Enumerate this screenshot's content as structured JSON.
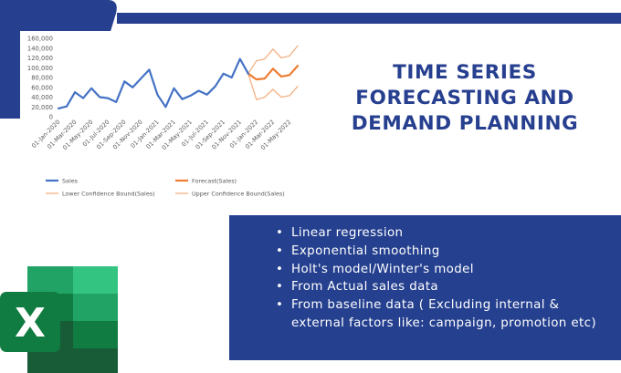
{
  "title_lines": [
    "TIME SERIES",
    "FORECASTING AND",
    "DEMAND PLANNING"
  ],
  "bullets": [
    "Linear regression",
    "Exponential smoothing",
    "Holt's model/Winter's model",
    "From Actual sales data",
    "From baseline data ( Excluding internal & external factors like: campaign, promotion etc)"
  ],
  "logo": {
    "icon": "excel-icon",
    "letter": "X"
  },
  "colors": {
    "brand_blue": "#263f8f",
    "sales": "#4472c4",
    "forecast": "#ed7d31",
    "bound": "#f4b183",
    "excel_dark": "#185c37",
    "excel_mid": "#21a366",
    "excel_light": "#33c481",
    "excel_badge": "#107c41"
  },
  "chart_data": {
    "type": "line",
    "title": "",
    "xlabel": "",
    "ylabel": "",
    "ylim": [
      0,
      160000
    ],
    "y_ticks": [
      "0",
      "20,000",
      "40,000",
      "60,000",
      "80,000",
      "100,000",
      "120,000",
      "140,000",
      "160,000"
    ],
    "x_tick_labels": [
      "01-Jan-2020",
      "01-Mar-2020",
      "01-May-2020",
      "01-Jul-2020",
      "01-Sep-2020",
      "01-Nov-2020",
      "01-Jan-2021",
      "01-Mar-2021",
      "01-May-2021",
      "01-Jul-2021",
      "01-Sep-2021",
      "01-Nov-2021",
      "01-Jan-2022",
      "01-Mar-2022",
      "01-May-2022"
    ],
    "x": [
      "2020-01",
      "2020-02",
      "2020-03",
      "2020-04",
      "2020-05",
      "2020-06",
      "2020-07",
      "2020-08",
      "2020-09",
      "2020-10",
      "2020-11",
      "2020-12",
      "2021-01",
      "2021-02",
      "2021-03",
      "2021-04",
      "2021-05",
      "2021-06",
      "2021-07",
      "2021-08",
      "2021-09",
      "2021-10",
      "2021-11",
      "2021-12",
      "2022-01",
      "2022-02",
      "2022-03",
      "2022-04",
      "2022-05",
      "2022-06"
    ],
    "series": [
      {
        "name": "Sales",
        "color": "#4472c4",
        "values": [
          17000,
          21000,
          50000,
          38000,
          58000,
          40000,
          38000,
          30000,
          72000,
          60000,
          78000,
          96000,
          45000,
          20000,
          58000,
          36000,
          43000,
          53000,
          45000,
          62000,
          88000,
          80000,
          118000,
          88000,
          null,
          null,
          null,
          null,
          null,
          null
        ]
      },
      {
        "name": "Forecast(Sales)",
        "color": "#ed7d31",
        "values": [
          null,
          null,
          null,
          null,
          null,
          null,
          null,
          null,
          null,
          null,
          null,
          null,
          null,
          null,
          null,
          null,
          null,
          null,
          null,
          null,
          null,
          null,
          null,
          88000,
          76000,
          78000,
          98000,
          82000,
          85000,
          104000
        ]
      },
      {
        "name": "Lower Confidence Bound(Sales)",
        "color": "#f4b183",
        "values": [
          null,
          null,
          null,
          null,
          null,
          null,
          null,
          null,
          null,
          null,
          null,
          null,
          null,
          null,
          null,
          null,
          null,
          null,
          null,
          null,
          null,
          null,
          null,
          88000,
          35000,
          40000,
          56000,
          40000,
          43000,
          62000
        ]
      },
      {
        "name": "Upper Confidence Bound(Sales)",
        "color": "#f4b183",
        "values": [
          null,
          null,
          null,
          null,
          null,
          null,
          null,
          null,
          null,
          null,
          null,
          null,
          null,
          null,
          null,
          null,
          null,
          null,
          null,
          null,
          null,
          null,
          null,
          88000,
          114000,
          118000,
          138000,
          120000,
          124000,
          145000
        ]
      }
    ],
    "legend_position": "bottom",
    "grid": false
  }
}
